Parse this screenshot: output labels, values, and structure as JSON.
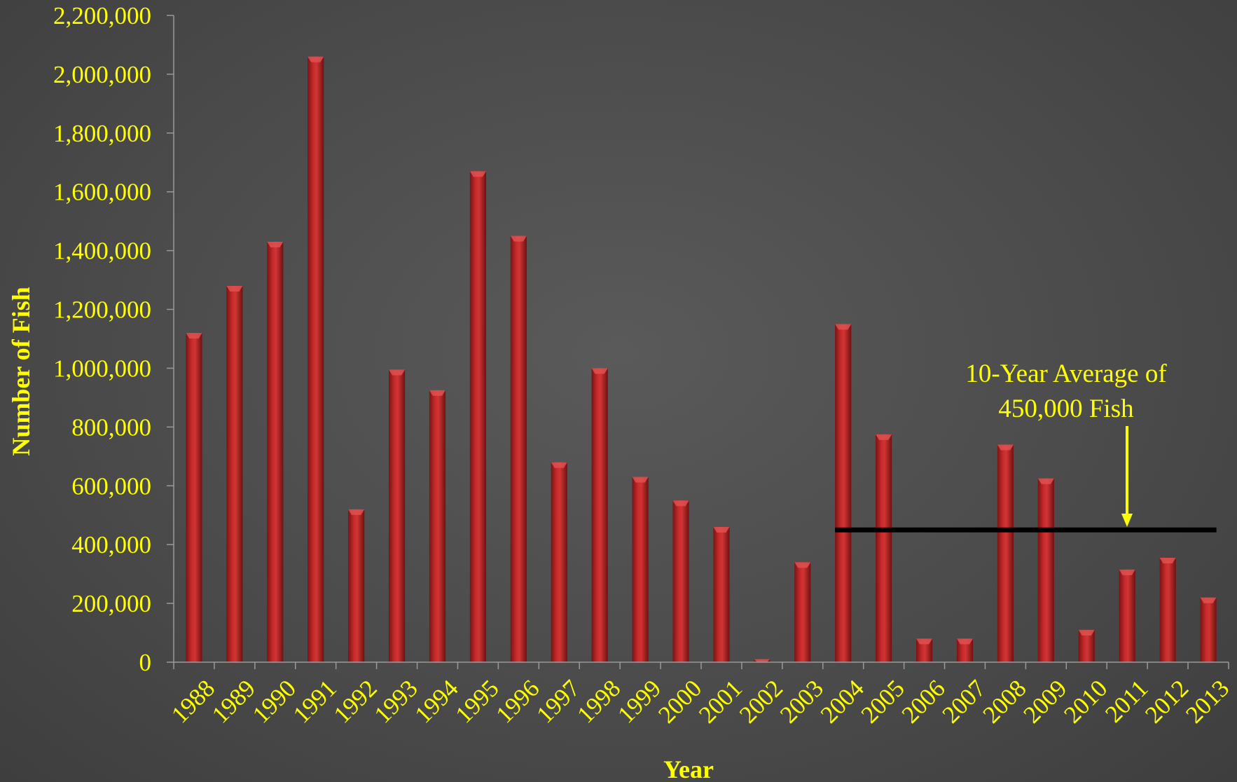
{
  "chart_data": {
    "type": "bar",
    "title": "",
    "xlabel": "Year",
    "ylabel": "Number of Fish",
    "ylim": [
      0,
      2200000
    ],
    "yticks": [
      0,
      200000,
      400000,
      600000,
      800000,
      1000000,
      1200000,
      1400000,
      1600000,
      1800000,
      2000000,
      2200000
    ],
    "ytick_labels": [
      "0",
      "200,000",
      "400,000",
      "600,000",
      "800,000",
      "1,000,000",
      "1,200,000",
      "1,400,000",
      "1,600,000",
      "1,800,000",
      "2,000,000",
      "2,200,000"
    ],
    "categories": [
      "1988",
      "1989",
      "1990",
      "1991",
      "1992",
      "1993",
      "1994",
      "1995",
      "1996",
      "1997",
      "1998",
      "1999",
      "2000",
      "2001",
      "2002",
      "2003",
      "2004",
      "2005",
      "2006",
      "2007",
      "2008",
      "2009",
      "2010",
      "2011",
      "2012",
      "2013"
    ],
    "values": [
      1120000,
      1280000,
      1430000,
      2060000,
      520000,
      995000,
      925000,
      1670000,
      1450000,
      680000,
      1000000,
      630000,
      550000,
      460000,
      10000,
      340000,
      1150000,
      775000,
      80000,
      80000,
      740000,
      625000,
      110000,
      315000,
      355000,
      220000
    ],
    "bar_color": "#b22222",
    "text_color": "#ffff00",
    "grid": false,
    "average_line": {
      "value": 450000,
      "from_category": "2004",
      "to_category": "2013",
      "color": "#000000"
    },
    "annotation": {
      "lines": [
        "10-Year Average of",
        "450,000 Fish"
      ],
      "arrow_color": "#ffff00"
    }
  }
}
